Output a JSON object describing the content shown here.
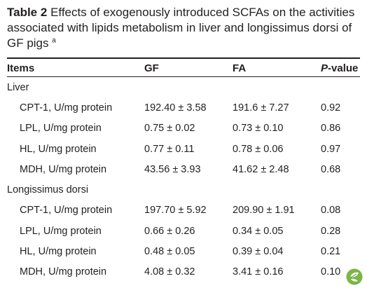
{
  "caption": {
    "label": "Table 2",
    "text": "Effects of exogenously introduced SCFAs on the activities associated with lipids metabolism in liver and longissimus dorsi of GF pigs",
    "footnote_mark": "a"
  },
  "table": {
    "headers": {
      "items": "Items",
      "gf": "GF",
      "fa": "FA",
      "p_italic": "P",
      "p_rest": "-value"
    },
    "sections": [
      {
        "title": "Liver",
        "rows": [
          {
            "item": "CPT-1, U/mg protein",
            "gf": "192.40 ± 3.58",
            "fa": "191.6 ± 7.27",
            "p": "0.92"
          },
          {
            "item": "LPL, U/mg protein",
            "gf": "0.75 ± 0.02",
            "fa": "0.73 ± 0.10",
            "p": "0.86"
          },
          {
            "item": "HL, U/mg protein",
            "gf": "0.77 ± 0.11",
            "fa": "0.78 ± 0.06",
            "p": "0.97"
          },
          {
            "item": "MDH, U/mg protein",
            "gf": "43.56 ± 3.93",
            "fa": "41.62 ± 2.48",
            "p": "0.68"
          }
        ]
      },
      {
        "title": "Longissimus dorsi",
        "rows": [
          {
            "item": "CPT-1, U/mg protein",
            "gf": "197.70 ± 5.92",
            "fa": "209.90 ± 1.91",
            "p": "0.08"
          },
          {
            "item": "LPL, U/mg protein",
            "gf": "0.66 ± 0.26",
            "fa": "0.34 ± 0.05",
            "p": "0.28"
          },
          {
            "item": "HL, U/mg protein",
            "gf": "0.48 ± 0.05",
            "fa": "0.39 ± 0.04",
            "p": "0.21"
          },
          {
            "item": "MDH, U/mg protein",
            "gf": "4.08 ± 0.32",
            "fa": "3.41 ± 0.16",
            "p": "0.10"
          }
        ]
      }
    ]
  },
  "colors": {
    "text": "#231f20",
    "logo_green": "#7ab744",
    "logo_dark": "#5a8f2e"
  },
  "icons": {
    "publisher_logo": "leaf-logo-icon"
  }
}
